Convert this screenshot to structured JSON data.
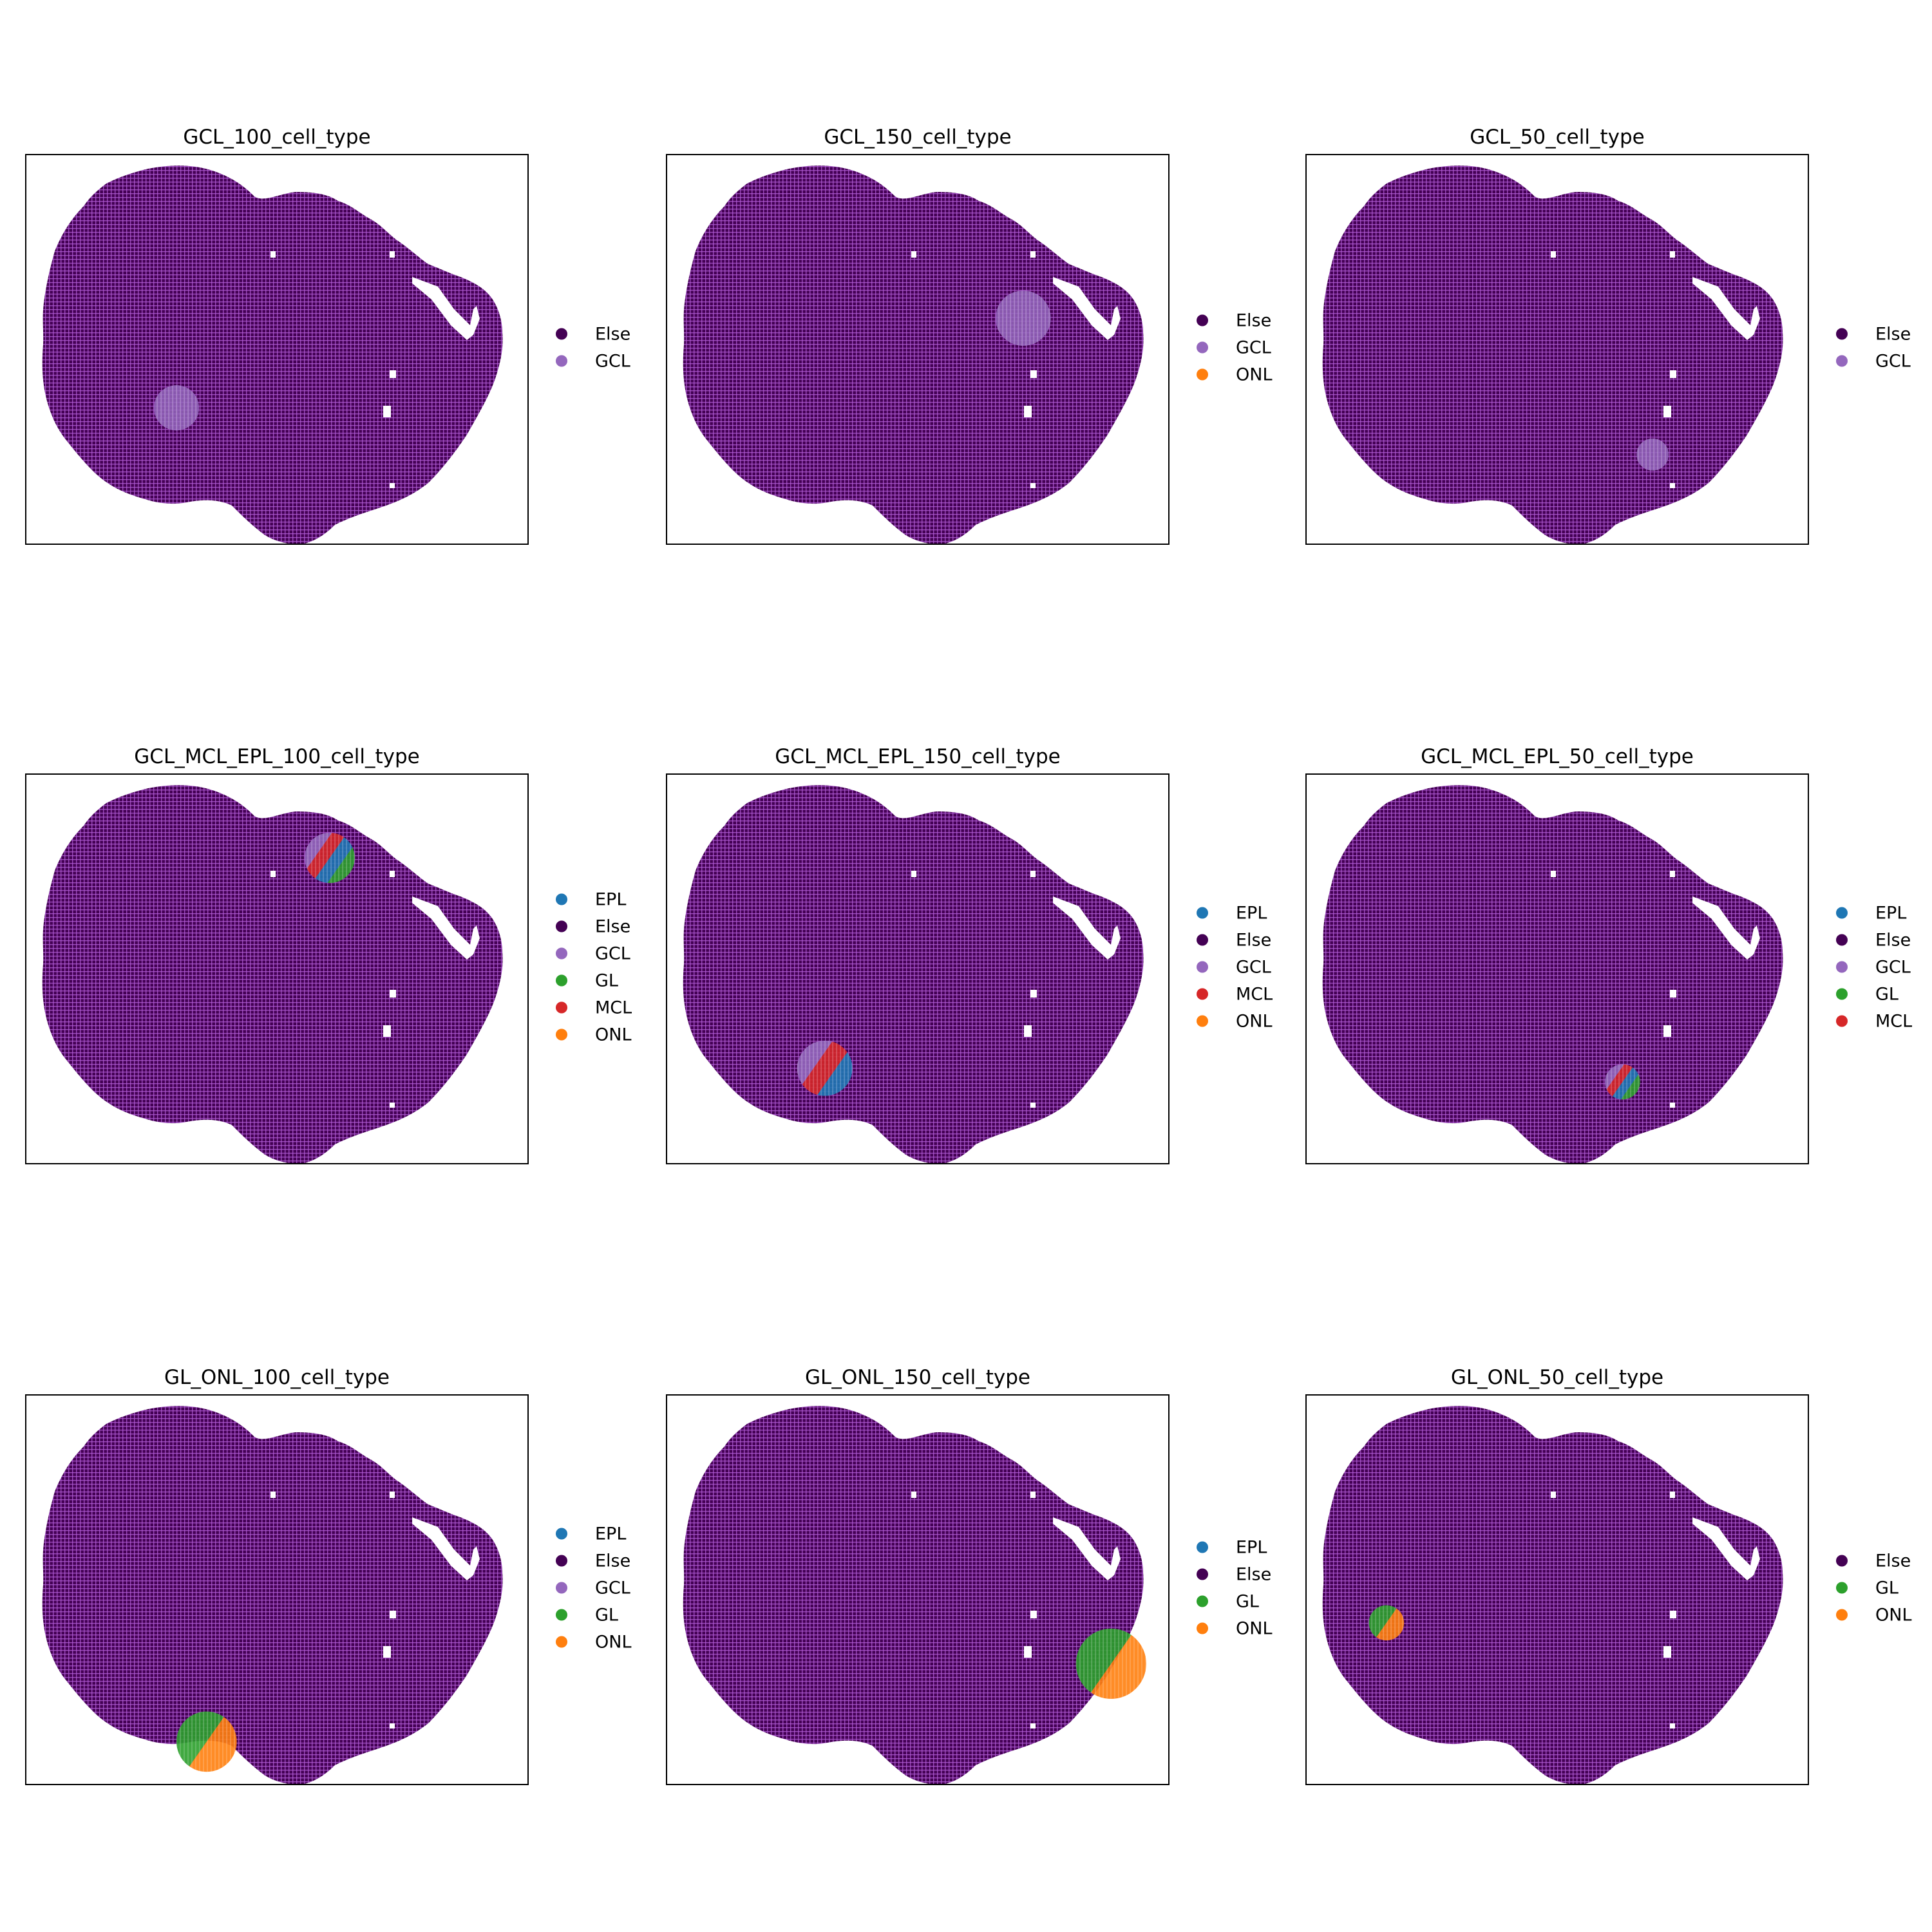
{
  "palette": {
    "Else": "#440154",
    "GCL": "#9467bd",
    "ONL": "#ff7f0e",
    "EPL": "#1f77b4",
    "GL": "#2ca02c",
    "MCL": "#d62728",
    "spot_edge": "#b25cd6",
    "frame": "#000000"
  },
  "chart_data": [
    {
      "type": "scatter",
      "title": "GCL_100_cell_type",
      "xlabel": "",
      "ylabel": "",
      "grid": false,
      "ticks": false,
      "legend_position": "right",
      "legend": [
        "Else",
        "GCL"
      ],
      "region": {
        "cx": 0.3,
        "cy": 0.65,
        "r": 0.045,
        "layers": [
          "GCL"
        ]
      }
    },
    {
      "type": "scatter",
      "title": "GCL_150_cell_type",
      "xlabel": "",
      "ylabel": "",
      "grid": false,
      "ticks": false,
      "legend_position": "right",
      "legend": [
        "Else",
        "GCL",
        "ONL"
      ],
      "region": {
        "cx": 0.71,
        "cy": 0.42,
        "r": 0.055,
        "layers": [
          "GCL"
        ]
      }
    },
    {
      "type": "scatter",
      "title": "GCL_50_cell_type",
      "xlabel": "",
      "ylabel": "",
      "grid": false,
      "ticks": false,
      "legend_position": "right",
      "legend": [
        "Else",
        "GCL"
      ],
      "region": {
        "cx": 0.69,
        "cy": 0.77,
        "r": 0.032,
        "layers": [
          "GCL"
        ]
      }
    },
    {
      "type": "scatter",
      "title": "GCL_MCL_EPL_100_cell_type",
      "xlabel": "",
      "ylabel": "",
      "grid": false,
      "ticks": false,
      "legend_position": "right",
      "legend": [
        "EPL",
        "Else",
        "GCL",
        "GL",
        "MCL",
        "ONL"
      ],
      "region": {
        "cx": 0.605,
        "cy": 0.215,
        "r": 0.05,
        "layers": [
          "GCL",
          "MCL",
          "EPL",
          "GL"
        ]
      }
    },
    {
      "type": "scatter",
      "title": "GCL_MCL_EPL_150_cell_type",
      "xlabel": "",
      "ylabel": "",
      "grid": false,
      "ticks": false,
      "legend_position": "right",
      "legend": [
        "EPL",
        "Else",
        "GCL",
        "MCL",
        "ONL"
      ],
      "region": {
        "cx": 0.315,
        "cy": 0.755,
        "r": 0.055,
        "layers": [
          "GCL",
          "MCL",
          "EPL"
        ]
      }
    },
    {
      "type": "scatter",
      "title": "GCL_MCL_EPL_50_cell_type",
      "xlabel": "",
      "ylabel": "",
      "grid": false,
      "ticks": false,
      "legend_position": "right",
      "legend": [
        "EPL",
        "Else",
        "GCL",
        "GL",
        "MCL"
      ],
      "region": {
        "cx": 0.63,
        "cy": 0.79,
        "r": 0.035,
        "layers": [
          "GCL",
          "MCL",
          "EPL",
          "GL"
        ]
      }
    },
    {
      "type": "scatter",
      "title": "GL_ONL_100_cell_type",
      "xlabel": "",
      "ylabel": "",
      "grid": false,
      "ticks": false,
      "legend_position": "right",
      "legend": [
        "EPL",
        "Else",
        "GCL",
        "GL",
        "ONL"
      ],
      "region": {
        "cx": 0.36,
        "cy": 0.89,
        "r": 0.06,
        "layers": [
          "GL",
          "ONL"
        ]
      }
    },
    {
      "type": "scatter",
      "title": "GL_ONL_150_cell_type",
      "xlabel": "",
      "ylabel": "",
      "grid": false,
      "ticks": false,
      "legend_position": "right",
      "legend": [
        "EPL",
        "Else",
        "GL",
        "ONL"
      ],
      "region": {
        "cx": 0.885,
        "cy": 0.69,
        "r": 0.07,
        "layers": [
          "GL",
          "ONL"
        ]
      }
    },
    {
      "type": "scatter",
      "title": "GL_ONL_50_cell_type",
      "xlabel": "",
      "ylabel": "",
      "grid": false,
      "ticks": false,
      "legend_position": "right",
      "legend": [
        "Else",
        "GL",
        "ONL"
      ],
      "region": {
        "cx": 0.16,
        "cy": 0.585,
        "r": 0.035,
        "layers": [
          "GL",
          "ONL"
        ]
      }
    }
  ]
}
